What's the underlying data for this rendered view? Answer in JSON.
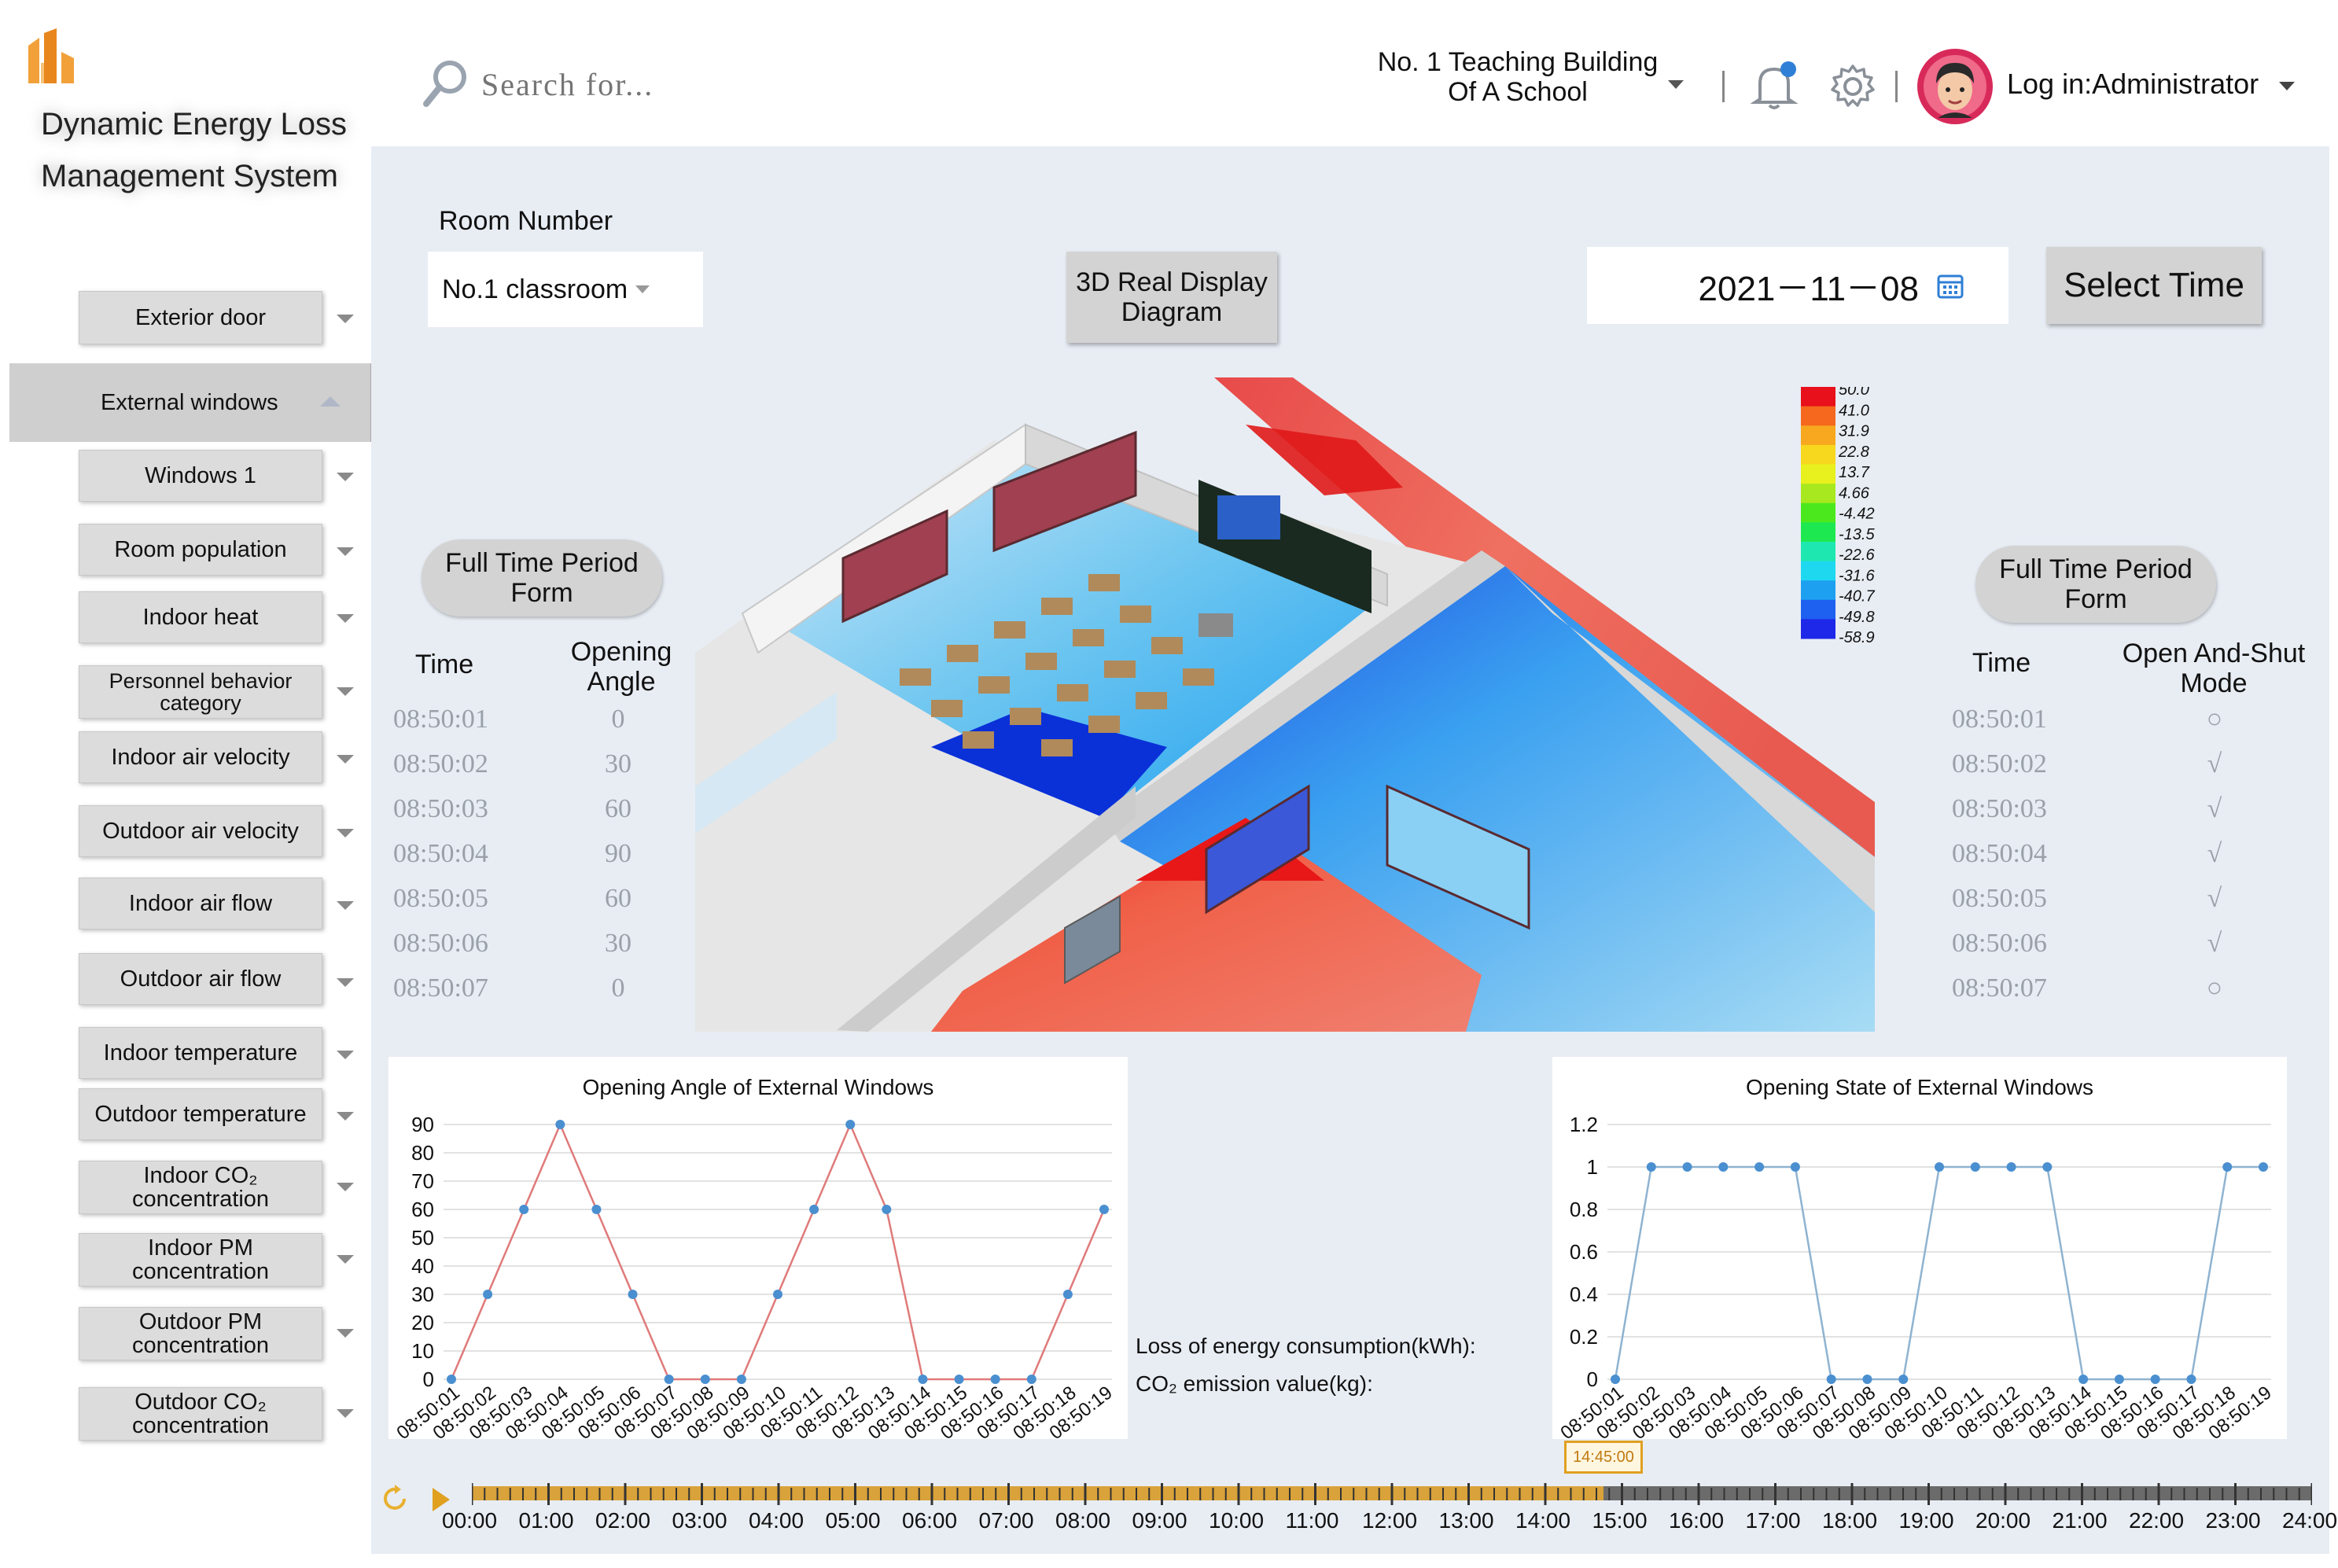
{
  "app": {
    "title_line1": "Dynamic Energy Loss",
    "title_line2": "Management System"
  },
  "header": {
    "search_placeholder": "Search for...",
    "building_line1": "No. 1 Teaching Building",
    "building_line2": "Of A School",
    "user_label": "Log in:Administrator",
    "icons": [
      "search-icon",
      "bell-icon",
      "gear-icon",
      "avatar"
    ],
    "accent_color": "#2f7fd6"
  },
  "sidebar": {
    "items": [
      {
        "label": "Exterior door",
        "expanded": false
      },
      {
        "label": "External windows",
        "expanded": true,
        "selected": true
      },
      {
        "label": "Windows 1",
        "expanded": false
      },
      {
        "label": "Room population",
        "expanded": false
      },
      {
        "label": "Indoor heat",
        "expanded": false
      },
      {
        "label": "Personnel behavior category",
        "expanded": false
      },
      {
        "label": "Indoor air velocity",
        "expanded": false
      },
      {
        "label": "Outdoor air velocity",
        "expanded": false
      },
      {
        "label": "Indoor air flow",
        "expanded": false
      },
      {
        "label": "Outdoor air flow",
        "expanded": false
      },
      {
        "label": "Indoor temperature",
        "expanded": false
      },
      {
        "label": "Outdoor temperature",
        "expanded": false
      },
      {
        "label": "Indoor CO₂ concentration",
        "expanded": false
      },
      {
        "label": "Indoor PM concentration",
        "expanded": false
      },
      {
        "label": "Outdoor PM concentration",
        "expanded": false
      },
      {
        "label": "Outdoor CO₂ concentration",
        "expanded": false
      }
    ]
  },
  "controls": {
    "room_number_label": "Room Number",
    "room_select_value": "No.1 classroom",
    "display_button": "3D Real Display Diagram",
    "date_value": "2021－11－08",
    "select_time_button": "Select Time"
  },
  "left_table": {
    "form_button": "Full Time Period Form",
    "col_time": "Time",
    "col_value": "Opening Angle",
    "rows": [
      {
        "time": "08:50:01",
        "value": "0"
      },
      {
        "time": "08:50:02",
        "value": "30"
      },
      {
        "time": "08:50:03",
        "value": "60"
      },
      {
        "time": "08:50:04",
        "value": "90"
      },
      {
        "time": "08:50:05",
        "value": "60"
      },
      {
        "time": "08:50:06",
        "value": "30"
      },
      {
        "time": "08:50:07",
        "value": "0"
      }
    ]
  },
  "right_table": {
    "form_button": "Full Time Period Form",
    "col_time": "Time",
    "col_value": "Open And-Shut Mode",
    "rows": [
      {
        "time": "08:50:01",
        "value": "○"
      },
      {
        "time": "08:50:02",
        "value": "√"
      },
      {
        "time": "08:50:03",
        "value": "√"
      },
      {
        "time": "08:50:04",
        "value": "√"
      },
      {
        "time": "08:50:05",
        "value": "√"
      },
      {
        "time": "08:50:06",
        "value": "√"
      },
      {
        "time": "08:50:07",
        "value": "○"
      }
    ]
  },
  "legend": {
    "values": [
      "50.0",
      "41.0",
      "31.9",
      "22.8",
      "13.7",
      "4.66",
      "-4.42",
      "-13.5",
      "-22.6",
      "-31.6",
      "-40.7",
      "-49.8",
      "-58.9"
    ],
    "colors": [
      "#e8101a",
      "#f5681e",
      "#f7a81e",
      "#f7d81e",
      "#e8f01e",
      "#a8e81e",
      "#4ce81e",
      "#1ee850",
      "#1ee8b0",
      "#1ed8f0",
      "#1ea0f0",
      "#1e60f0",
      "#1e28e8"
    ]
  },
  "metrics": {
    "energy_label": "Loss of energy consumption(kWh):",
    "co2_label": "CO₂ emission value(kg):"
  },
  "chart_data": [
    {
      "type": "line",
      "title": "Opening Angle  of External Windows",
      "x": [
        "08:50:01",
        "08:50:02",
        "08:50:03",
        "08:50:04",
        "08:50:05",
        "08:50:06",
        "08:50:07",
        "08:50:08",
        "08:50:09",
        "08:50:10",
        "08:50:11",
        "08:50:12",
        "08:50:13",
        "08:50:14",
        "08:50:15",
        "08:50:16",
        "08:50:17",
        "08:50:18",
        "08:50:19"
      ],
      "values": [
        0,
        30,
        60,
        90,
        60,
        30,
        0,
        0,
        0,
        30,
        60,
        90,
        60,
        0,
        0,
        0,
        0,
        30,
        60
      ],
      "ylim": [
        0,
        90
      ],
      "yticks": [
        0,
        10,
        20,
        30,
        40,
        50,
        60,
        70,
        80,
        90
      ],
      "line_color": "#e07a7a",
      "point_color": "#4a8fd0",
      "grid": true
    },
    {
      "type": "line",
      "title": "Opening State  of External Windows",
      "x": [
        "08:50:01",
        "08:50:02",
        "08:50:03",
        "08:50:04",
        "08:50:05",
        "08:50:06",
        "08:50:07",
        "08:50:08",
        "08:50:09",
        "08:50:10",
        "08:50:11",
        "08:50:12",
        "08:50:13",
        "08:50:14",
        "08:50:15",
        "08:50:16",
        "08:50:17",
        "08:50:18",
        "08:50:19"
      ],
      "values": [
        0,
        1,
        1,
        1,
        1,
        1,
        0,
        0,
        0,
        1,
        1,
        1,
        1,
        0,
        0,
        0,
        0,
        1,
        1
      ],
      "ylim": [
        0,
        1.2
      ],
      "yticks": [
        "0",
        "0.2",
        "0.4",
        "0.6",
        "0.8",
        "1",
        "1.2"
      ],
      "line_color": "#8fb3d0",
      "point_color": "#4a8fd0",
      "grid": true
    }
  ],
  "timeline": {
    "labels": [
      "00:00",
      "01:00",
      "02:00",
      "03:00",
      "04:00",
      "05:00",
      "06:00",
      "07:00",
      "08:00",
      "09:00",
      "10:00",
      "11:00",
      "12:00",
      "13:00",
      "14:00",
      "15:00",
      "16:00",
      "17:00",
      "18:00",
      "19:00",
      "20:00",
      "21:00",
      "22:00",
      "23:00",
      "24:00"
    ],
    "current": "14:45:00",
    "progress_fraction": 0.615,
    "played_color": "#d9a23a",
    "remaining_color": "#6b6b6b"
  }
}
